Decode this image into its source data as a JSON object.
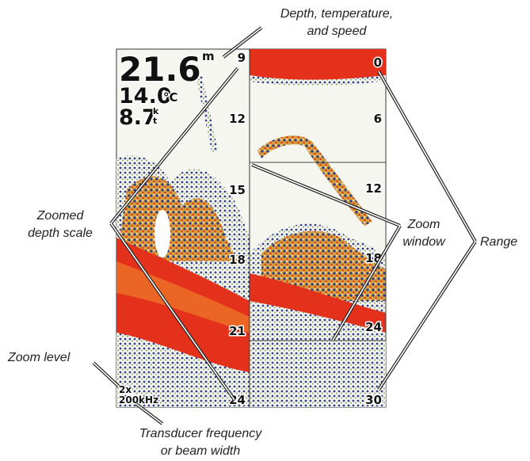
{
  "callouts": {
    "depth_temp_speed": [
      "Depth, temperature,",
      "and speed"
    ],
    "zoomed_depth_scale": [
      "Zoomed",
      "depth scale"
    ],
    "zoom_window": [
      "Zoom",
      "window"
    ],
    "range": "Range",
    "zoom_level": "Zoom level",
    "transducer": [
      "Transducer frequency",
      "or beam width"
    ]
  },
  "screen": {
    "depth": "21.6",
    "depth_unit": "m",
    "temperature": "14.0",
    "temperature_unit": "°C",
    "speed": "8.7",
    "speed_unit": [
      "k",
      "t"
    ],
    "zoom_level": "2x",
    "frequency": "200kHz",
    "zoomed_scale": [
      "9",
      "12",
      "15",
      "18",
      "21",
      "24"
    ],
    "range_scale": [
      "0",
      "6",
      "12",
      "18",
      "24",
      "30"
    ]
  }
}
